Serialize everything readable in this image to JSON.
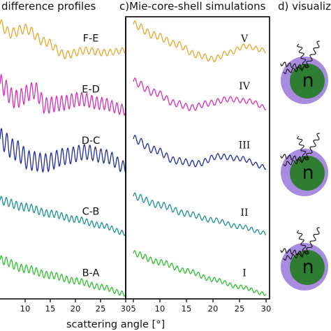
{
  "panels": [
    {
      "title": "difference profiles"
    },
    {
      "title": "c)Mie-core-shell simulations"
    },
    {
      "title": "d) visualiz"
    }
  ],
  "xlabel": "scattering angle [°]",
  "colors": {
    "yellow": "#e8a72b",
    "magenta": "#d62fb8",
    "navy": "#1f2d9c",
    "teal": "#1b9196",
    "green": "#2fc12f",
    "shell": "#a98be0",
    "core": "#2e7d32"
  },
  "chart_data": [
    {
      "type": "line",
      "title": "difference profiles",
      "xlabel": "scattering angle [°]",
      "xlim": [
        5,
        30
      ],
      "x_ticks": [
        "10",
        "15",
        "20",
        "25",
        "30"
      ],
      "series": [
        {
          "name": "F-E",
          "color": "yellow",
          "offset": 0,
          "x": [
            5,
            7,
            10,
            14,
            18,
            22,
            26,
            30
          ],
          "y": [
            0.95,
            0.75,
            0.85,
            0.55,
            0.25,
            0.35,
            0.3,
            0.35
          ],
          "osc_period": 1.2,
          "osc_amp": 0.12
        },
        {
          "name": "E-D",
          "color": "magenta",
          "offset": 1,
          "x": [
            5,
            8,
            12,
            14,
            17,
            21,
            25,
            30
          ],
          "y": [
            0.9,
            0.55,
            0.75,
            0.4,
            0.45,
            0.55,
            0.45,
            0.3
          ],
          "osc_period": 1.0,
          "osc_amp": 0.22
        },
        {
          "name": "D-C",
          "color": "navy",
          "offset": 2,
          "x": [
            5,
            8,
            11,
            14,
            18,
            22,
            26,
            30
          ],
          "y": [
            0.95,
            0.7,
            0.45,
            0.4,
            0.55,
            0.65,
            0.55,
            0.3
          ],
          "osc_period": 1.1,
          "osc_amp": 0.25
        },
        {
          "name": "C-B",
          "color": "teal",
          "offset": 3,
          "x": [
            5,
            10,
            15,
            20,
            25,
            30
          ],
          "y": [
            0.85,
            0.7,
            0.55,
            0.42,
            0.28,
            0.1
          ],
          "osc_period": 1.0,
          "osc_amp": 0.1
        },
        {
          "name": "B-A",
          "color": "green",
          "offset": 4,
          "x": [
            5,
            10,
            15,
            20,
            25,
            30
          ],
          "y": [
            0.8,
            0.6,
            0.45,
            0.32,
            0.18,
            0.02
          ],
          "osc_period": 1.0,
          "osc_amp": 0.1
        }
      ]
    },
    {
      "type": "line",
      "title": "c)Mie-core-shell simulations",
      "xlabel": "scattering angle [°]",
      "xlim": [
        5,
        30
      ],
      "x_ticks": [
        "5",
        "10",
        "15",
        "20",
        "25",
        "30"
      ],
      "series": [
        {
          "name": "V",
          "color": "yellow",
          "offset": 0,
          "x": [
            5,
            9,
            13,
            17,
            20,
            23,
            26,
            30
          ],
          "y": [
            0.95,
            0.7,
            0.5,
            0.25,
            0.15,
            0.3,
            0.45,
            0.35
          ],
          "osc_period": 1.2,
          "osc_amp": 0.09
        },
        {
          "name": "IV",
          "color": "magenta",
          "offset": 1,
          "x": [
            5,
            9,
            13,
            16,
            19,
            23,
            27,
            30
          ],
          "y": [
            0.95,
            0.7,
            0.45,
            0.35,
            0.45,
            0.55,
            0.5,
            0.35
          ],
          "osc_period": 1.2,
          "osc_amp": 0.09
        },
        {
          "name": "III",
          "color": "navy",
          "offset": 2,
          "x": [
            5,
            9,
            13,
            17,
            21,
            25,
            30
          ],
          "y": [
            0.95,
            0.7,
            0.45,
            0.38,
            0.55,
            0.5,
            0.3
          ],
          "osc_period": 1.2,
          "osc_amp": 0.09
        },
        {
          "name": "II",
          "color": "teal",
          "offset": 3,
          "x": [
            5,
            10,
            15,
            20,
            25,
            30
          ],
          "y": [
            0.95,
            0.75,
            0.55,
            0.4,
            0.25,
            0.1
          ],
          "osc_period": 1.1,
          "osc_amp": 0.08
        },
        {
          "name": "I",
          "color": "green",
          "offset": 4,
          "x": [
            5,
            10,
            15,
            20,
            25,
            30
          ],
          "y": [
            0.95,
            0.75,
            0.55,
            0.35,
            0.18,
            0.02
          ],
          "osc_period": 1.0,
          "osc_amp": 0.07
        }
      ]
    }
  ],
  "visualization": {
    "particles": [
      {
        "label": "n"
      },
      {
        "label": "n"
      },
      {
        "label": "n"
      }
    ]
  }
}
